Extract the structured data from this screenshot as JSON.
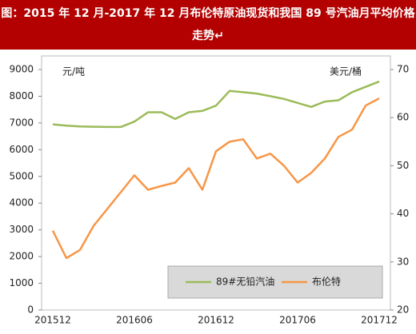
{
  "chart_data": {
    "type": "line",
    "title": "图：2015 年 12 月-2017 年 12 月布伦特原油现货和我国 89 号汽油月平均价格走势↵",
    "y_unit": "元/吨",
    "y2_unit": "美元/桶",
    "categories": [
      "201512",
      null,
      null,
      null,
      null,
      null,
      "201606",
      null,
      null,
      null,
      null,
      null,
      "201612",
      null,
      null,
      null,
      null,
      null,
      "201706",
      null,
      null,
      null,
      null,
      null,
      "201712"
    ],
    "series": [
      {
        "name": "89#无铅汽油",
        "color": "#9bbb59",
        "axis": "y",
        "values": [
          6950,
          6900,
          6870,
          6860,
          6850,
          6850,
          7050,
          7400,
          7400,
          7150,
          7400,
          7450,
          7650,
          8200,
          8150,
          8100,
          8000,
          7900,
          7750,
          7600,
          7800,
          7850,
          8150,
          8350,
          8550
        ]
      },
      {
        "name": "布伦特",
        "color": "#f79646",
        "axis": "y2",
        "values": [
          36.5,
          30.8,
          32.5,
          37.5,
          41,
          44.5,
          48,
          45,
          45.8,
          46.5,
          49.5,
          45,
          53,
          55,
          55.5,
          51.5,
          52.5,
          50,
          46.5,
          48.5,
          51.5,
          56,
          57.5,
          62.5,
          64
        ]
      }
    ],
    "ylim": [
      0,
      9000
    ],
    "yticks": [
      0,
      1000,
      2000,
      3000,
      4000,
      5000,
      6000,
      7000,
      8000,
      9000
    ],
    "y2lim": [
      20,
      70
    ],
    "y2ticks": [
      20,
      30,
      40,
      50,
      60,
      70
    ]
  }
}
